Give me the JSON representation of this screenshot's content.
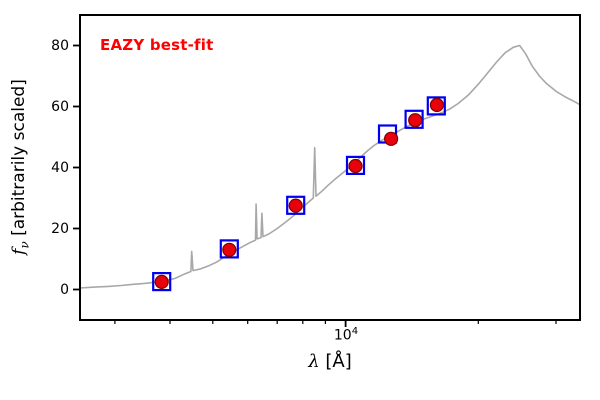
{
  "figure": {
    "background": "#ffffff"
  },
  "chart_data": {
    "type": "line+scatter",
    "title": "EAZY best-fit",
    "title_color": "#ff0000",
    "xlabel_parts": {
      "symbol": "λ",
      "rest": " [Å]"
    },
    "ylabel_parts": {
      "symbol": "f",
      "subscript": "ν",
      "rest": " [arbitrarily scaled]"
    },
    "x_scale": "log",
    "xlim": [
      2500,
      34000
    ],
    "ylim": [
      -10,
      90
    ],
    "yticks": [
      0,
      20,
      40,
      60,
      80
    ],
    "xtick_major": {
      "value": 10000,
      "label_base": "10",
      "label_exp": "4"
    },
    "xticks_minor": [
      3000,
      4000,
      5000,
      6000,
      7000,
      8000,
      9000,
      20000,
      30000
    ],
    "grid": false,
    "legend": "none",
    "series": [
      {
        "name": "model-spectrum",
        "type": "line",
        "color": "#a8a8a8",
        "line_width": 1.6,
        "points": [
          [
            2500,
            0.5
          ],
          [
            2700,
            0.8
          ],
          [
            2900,
            1.0
          ],
          [
            3100,
            1.3
          ],
          [
            3300,
            1.7
          ],
          [
            3500,
            2.0
          ],
          [
            3700,
            2.4
          ],
          [
            3900,
            2.9
          ],
          [
            4100,
            3.6
          ],
          [
            4300,
            5.0
          ],
          [
            4460,
            5.9
          ],
          [
            4480,
            12.5
          ],
          [
            4510,
            6.2
          ],
          [
            4700,
            6.8
          ],
          [
            4900,
            7.8
          ],
          [
            5100,
            9.0
          ],
          [
            5300,
            10.5
          ],
          [
            5500,
            12.0
          ],
          [
            5700,
            13.2
          ],
          [
            5900,
            14.4
          ],
          [
            6100,
            15.5
          ],
          [
            6250,
            16.2
          ],
          [
            6270,
            28.0
          ],
          [
            6300,
            16.6
          ],
          [
            6430,
            17.0
          ],
          [
            6460,
            25.0
          ],
          [
            6500,
            17.3
          ],
          [
            6700,
            18.2
          ],
          [
            7000,
            20.0
          ],
          [
            7300,
            22.0
          ],
          [
            7600,
            24.0
          ],
          [
            7900,
            26.3
          ],
          [
            8200,
            28.4
          ],
          [
            8450,
            30.0
          ],
          [
            8510,
            46.5
          ],
          [
            8570,
            30.6
          ],
          [
            8800,
            32.0
          ],
          [
            9100,
            34.0
          ],
          [
            9400,
            35.8
          ],
          [
            9700,
            37.4
          ],
          [
            10000,
            39.0
          ],
          [
            10400,
            41.0
          ],
          [
            10800,
            43.3
          ],
          [
            11200,
            45.4
          ],
          [
            11600,
            47.2
          ],
          [
            12000,
            48.6
          ],
          [
            12400,
            49.9
          ],
          [
            12800,
            51.0
          ],
          [
            13200,
            52.0
          ],
          [
            13700,
            53.3
          ],
          [
            14200,
            54.4
          ],
          [
            14800,
            55.5
          ],
          [
            15400,
            56.4
          ],
          [
            16000,
            57.2
          ],
          [
            16600,
            58.1
          ],
          [
            17200,
            59.1
          ],
          [
            18000,
            61.0
          ],
          [
            19000,
            63.8
          ],
          [
            20000,
            67.3
          ],
          [
            21000,
            71.0
          ],
          [
            22000,
            74.6
          ],
          [
            23000,
            77.6
          ],
          [
            24000,
            79.4
          ],
          [
            24800,
            80.0
          ],
          [
            25600,
            77.3
          ],
          [
            26500,
            73.2
          ],
          [
            27500,
            70.0
          ],
          [
            28500,
            67.6
          ],
          [
            30000,
            65.0
          ],
          [
            31500,
            63.1
          ],
          [
            33000,
            61.6
          ],
          [
            34000,
            60.6
          ]
        ]
      },
      {
        "name": "template-photometry",
        "type": "scatter-square",
        "color": "#0000ee",
        "marker_size": 17,
        "points": [
          [
            3830,
            2.6
          ],
          [
            5450,
            13.3
          ],
          [
            7710,
            27.6
          ],
          [
            10530,
            40.7
          ],
          [
            12450,
            51.0
          ],
          [
            14300,
            55.8
          ],
          [
            16060,
            60.2
          ]
        ]
      },
      {
        "name": "observed-photometry",
        "type": "scatter-circle",
        "fill": "#e8000b",
        "edge": "#7f0000",
        "marker_radius": 6.5,
        "points": [
          [
            3830,
            2.5
          ],
          [
            5450,
            13.0
          ],
          [
            7710,
            27.5
          ],
          [
            10530,
            40.5
          ],
          [
            12680,
            49.4
          ],
          [
            14380,
            55.5
          ],
          [
            16110,
            60.5
          ]
        ]
      }
    ]
  }
}
